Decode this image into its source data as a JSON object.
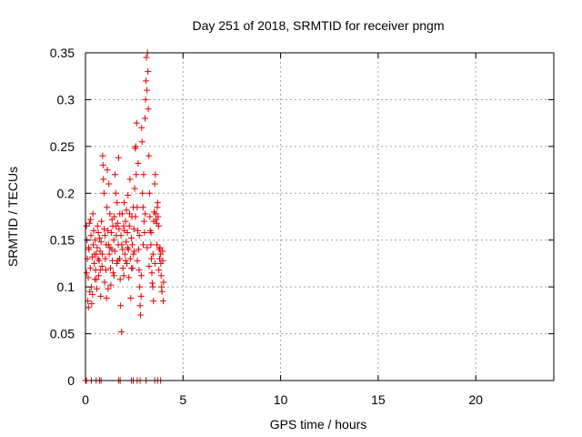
{
  "chart_data": {
    "type": "scatter",
    "title": "Day 251 of 2018, SRMTID for receiver pngm",
    "xlabel": "GPS time / hours",
    "ylabel": "SRMTID / TECUs",
    "xlim": [
      0,
      24
    ],
    "ylim": [
      0,
      0.35
    ],
    "x_ticks": [
      0,
      5,
      10,
      15,
      20
    ],
    "x_tick_labels": [
      "0",
      "5",
      "10",
      "15",
      "20"
    ],
    "y_ticks": [
      0,
      0.05,
      0.1,
      0.15,
      0.2,
      0.25,
      0.3,
      0.35
    ],
    "y_tick_labels": [
      "0",
      "0.05",
      "0.1",
      "0.15",
      "0.2",
      "0.25",
      "0.3",
      "0.35"
    ],
    "grid": true,
    "marker": "+",
    "color": "#e00000",
    "series": [
      {
        "name": "SRMTID",
        "points": [
          [
            0.05,
            0.165
          ],
          [
            0.08,
            0.15
          ],
          [
            0.1,
            0.13
          ],
          [
            0.12,
            0.085
          ],
          [
            0.14,
            0.11
          ],
          [
            0.15,
            0.078
          ],
          [
            0.18,
            0.14
          ],
          [
            0.2,
            0.168
          ],
          [
            0.22,
            0.095
          ],
          [
            0.25,
            0.12
          ],
          [
            0.28,
            0.155
          ],
          [
            0.3,
            0.1
          ],
          [
            0.32,
            0.082
          ],
          [
            0.35,
            0.132
          ],
          [
            0.38,
            0.178
          ],
          [
            0.4,
            0.145
          ],
          [
            0.42,
            0.16
          ],
          [
            0.45,
            0.125
          ],
          [
            0.48,
            0.108
          ],
          [
            0.5,
            0.15
          ],
          [
            0.52,
            0.118
          ],
          [
            0.55,
            0.135
          ],
          [
            0.58,
            0.098
          ],
          [
            0.6,
            0.142
          ],
          [
            0.62,
            0.165
          ],
          [
            0.65,
            0.13
          ],
          [
            0.68,
            0.112
          ],
          [
            0.7,
            0.128
          ],
          [
            0.72,
            0.152
          ],
          [
            0.75,
            0.138
          ],
          [
            0.78,
            0.09
          ],
          [
            0.8,
            0.148
          ],
          [
            0.82,
            0.17
          ],
          [
            0.85,
            0.122
          ],
          [
            0.88,
            0.24
          ],
          [
            0.9,
            0.23
          ],
          [
            0.92,
            0.215
          ],
          [
            0.95,
            0.2
          ],
          [
            0.98,
            0.105
          ],
          [
            1.0,
            0.155
          ],
          [
            1.02,
            0.13
          ],
          [
            1.05,
            0.118
          ],
          [
            1.08,
            0.088
          ],
          [
            1.1,
            0.185
          ],
          [
            1.12,
            0.225
          ],
          [
            1.15,
            0.16
          ],
          [
            1.18,
            0.145
          ],
          [
            1.2,
            0.21
          ],
          [
            1.22,
            0.135
          ],
          [
            1.25,
            0.178
          ],
          [
            1.28,
            0.12
          ],
          [
            1.3,
            0.102
          ],
          [
            1.32,
            0.158
          ],
          [
            1.35,
            0.14
          ],
          [
            1.38,
            0.128
          ],
          [
            1.4,
            0.165
          ],
          [
            1.42,
            0.115
          ],
          [
            1.45,
            0.15
          ],
          [
            1.48,
            0.175
          ],
          [
            1.5,
            0.138
          ],
          [
            1.52,
            0.22
          ],
          [
            1.55,
            0.2
          ],
          [
            1.58,
            0.155
          ],
          [
            1.6,
            0.125
          ],
          [
            1.62,
            0.19
          ],
          [
            1.65,
            0.168
          ],
          [
            1.68,
            0.145
          ],
          [
            1.7,
            0.238
          ],
          [
            1.72,
            0.162
          ],
          [
            1.75,
            0.13
          ],
          [
            1.78,
            0.108
          ],
          [
            1.8,
            0.08
          ],
          [
            1.82,
            0.155
          ],
          [
            1.85,
            0.052
          ],
          [
            1.88,
            0.178
          ],
          [
            1.9,
            0.14
          ],
          [
            1.92,
            0.12
          ],
          [
            1.95,
            0.165
          ],
          [
            1.98,
            0.19
          ],
          [
            2.0,
            0.16
          ],
          [
            2.02,
            0.135
          ],
          [
            2.05,
            0.17
          ],
          [
            2.08,
            0.148
          ],
          [
            2.1,
            0.182
          ],
          [
            2.12,
            0.125
          ],
          [
            2.15,
            0.158
          ],
          [
            2.18,
            0.198
          ],
          [
            2.2,
            0.14
          ],
          [
            2.22,
            0.11
          ],
          [
            2.25,
            0.165
          ],
          [
            2.28,
            0.215
          ],
          [
            2.3,
            0.13
          ],
          [
            2.32,
            0.088
          ],
          [
            2.35,
            0.152
          ],
          [
            2.38,
            0.175
          ],
          [
            2.4,
            0.145
          ],
          [
            2.42,
            0.12
          ],
          [
            2.45,
            0.185
          ],
          [
            2.48,
            0.162
          ],
          [
            2.5,
            0.138
          ],
          [
            2.52,
            0.205
          ],
          [
            2.55,
            0.248
          ],
          [
            2.58,
            0.25
          ],
          [
            2.6,
            0.22
          ],
          [
            2.62,
            0.275
          ],
          [
            2.65,
            0.185
          ],
          [
            2.68,
            0.16
          ],
          [
            2.7,
            0.232
          ],
          [
            2.72,
            0.14
          ],
          [
            2.75,
            0.118
          ],
          [
            2.78,
            0.1
          ],
          [
            2.8,
            0.08
          ],
          [
            2.82,
            0.07
          ],
          [
            2.85,
            0.09
          ],
          [
            2.88,
            0.27
          ],
          [
            2.9,
            0.255
          ],
          [
            2.92,
            0.2
          ],
          [
            2.95,
            0.185
          ],
          [
            2.98,
            0.22
          ],
          [
            3.0,
            0.17
          ],
          [
            3.02,
            0.158
          ],
          [
            3.05,
            0.28
          ],
          [
            3.08,
            0.3
          ],
          [
            3.1,
            0.32
          ],
          [
            3.12,
            0.345
          ],
          [
            3.15,
            0.31
          ],
          [
            3.18,
            0.35
          ],
          [
            3.2,
            0.33
          ],
          [
            3.22,
            0.29
          ],
          [
            3.25,
            0.24
          ],
          [
            3.28,
            0.2
          ],
          [
            3.3,
            0.175
          ],
          [
            3.32,
            0.16
          ],
          [
            3.35,
            0.145
          ],
          [
            3.38,
            0.13
          ],
          [
            3.4,
            0.115
          ],
          [
            3.42,
            0.104
          ],
          [
            3.45,
            0.1
          ],
          [
            3.48,
            0.085
          ],
          [
            3.5,
            0.17
          ],
          [
            3.52,
            0.18
          ],
          [
            3.55,
            0.21
          ],
          [
            3.58,
            0.22
          ],
          [
            3.6,
            0.178
          ],
          [
            3.62,
            0.172
          ],
          [
            3.65,
            0.168
          ],
          [
            3.68,
            0.185
          ],
          [
            3.7,
            0.19
          ],
          [
            3.72,
            0.175
          ],
          [
            3.75,
            0.165
          ],
          [
            3.78,
            0.14
          ],
          [
            3.8,
            0.13
          ],
          [
            3.82,
            0.142
          ],
          [
            3.85,
            0.135
          ],
          [
            3.88,
            0.112
          ],
          [
            3.9,
            0.1
          ],
          [
            3.92,
            0.095
          ],
          [
            3.95,
            0.138
          ],
          [
            3.98,
            0.085
          ],
          [
            4.0,
            0.105
          ],
          [
            0.06,
            0.115
          ],
          [
            0.16,
            0.142
          ],
          [
            0.26,
            0.172
          ],
          [
            0.36,
            0.092
          ],
          [
            0.46,
            0.135
          ],
          [
            0.56,
            0.108
          ],
          [
            0.66,
            0.158
          ],
          [
            0.76,
            0.118
          ],
          [
            0.86,
            0.135
          ],
          [
            0.96,
            0.162
          ],
          [
            1.06,
            0.145
          ],
          [
            1.16,
            0.098
          ],
          [
            1.26,
            0.142
          ],
          [
            1.36,
            0.172
          ],
          [
            1.46,
            0.112
          ],
          [
            1.56,
            0.165
          ],
          [
            1.66,
            0.128
          ],
          [
            1.76,
            0.178
          ],
          [
            1.86,
            0.145
          ],
          [
            1.96,
            0.112
          ],
          [
            2.06,
            0.128
          ],
          [
            2.16,
            0.142
          ],
          [
            2.26,
            0.178
          ],
          [
            2.36,
            0.12
          ],
          [
            2.46,
            0.135
          ],
          [
            2.56,
            0.175
          ],
          [
            2.66,
            0.128
          ],
          [
            2.76,
            0.155
          ],
          [
            2.86,
            0.112
          ],
          [
            2.96,
            0.145
          ],
          [
            3.06,
            0.178
          ],
          [
            3.16,
            0.142
          ],
          [
            3.26,
            0.122
          ],
          [
            3.36,
            0.158
          ],
          [
            3.46,
            0.135
          ],
          [
            3.56,
            0.125
          ],
          [
            3.66,
            0.145
          ],
          [
            3.76,
            0.118
          ],
          [
            3.86,
            0.125
          ],
          [
            3.96,
            0.128
          ],
          [
            0.0,
            0.0
          ],
          [
            0.05,
            0.0
          ],
          [
            0.3,
            0.0
          ],
          [
            0.55,
            0.0
          ],
          [
            0.72,
            0.0
          ],
          [
            0.8,
            0.0
          ],
          [
            1.7,
            0.0
          ],
          [
            1.78,
            0.0
          ],
          [
            2.35,
            0.0
          ],
          [
            2.45,
            0.0
          ],
          [
            2.65,
            0.0
          ],
          [
            2.8,
            0.0
          ],
          [
            3.1,
            0.0
          ],
          [
            3.55,
            0.0
          ],
          [
            3.7,
            0.0
          ],
          [
            3.85,
            0.0
          ]
        ]
      }
    ]
  }
}
